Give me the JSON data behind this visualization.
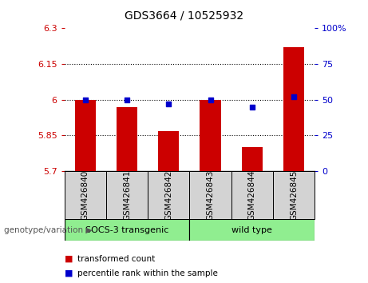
{
  "title": "GDS3664 / 10525932",
  "samples": [
    "GSM426840",
    "GSM426841",
    "GSM426842",
    "GSM426843",
    "GSM426844",
    "GSM426845"
  ],
  "bar_values": [
    6.0,
    5.97,
    5.87,
    6.0,
    5.8,
    6.22
  ],
  "percentile_values": [
    50,
    50,
    47,
    50,
    45,
    52
  ],
  "ylim_left": [
    5.7,
    6.3
  ],
  "ylim_right": [
    0,
    100
  ],
  "yticks_left": [
    5.7,
    5.85,
    6.0,
    6.15,
    6.3
  ],
  "ytick_labels_left": [
    "5.7",
    "5.85",
    "6",
    "6.15",
    "6.3"
  ],
  "yticks_right": [
    0,
    25,
    50,
    75,
    100
  ],
  "ytick_labels_right": [
    "0",
    "25",
    "50",
    "75",
    "100%"
  ],
  "hlines": [
    5.85,
    6.0,
    6.15
  ],
  "bar_color": "#cc0000",
  "dot_color": "#0000cc",
  "group1_label": "SOCS-3 transgenic",
  "group2_label": "wild type",
  "group1_indices": [
    0,
    1,
    2
  ],
  "group2_indices": [
    3,
    4,
    5
  ],
  "group_bg_color": "#90ee90",
  "sample_bg_color": "#d3d3d3",
  "legend_bar_label": "transformed count",
  "legend_dot_label": "percentile rank within the sample",
  "genotype_label": "genotype/variation"
}
